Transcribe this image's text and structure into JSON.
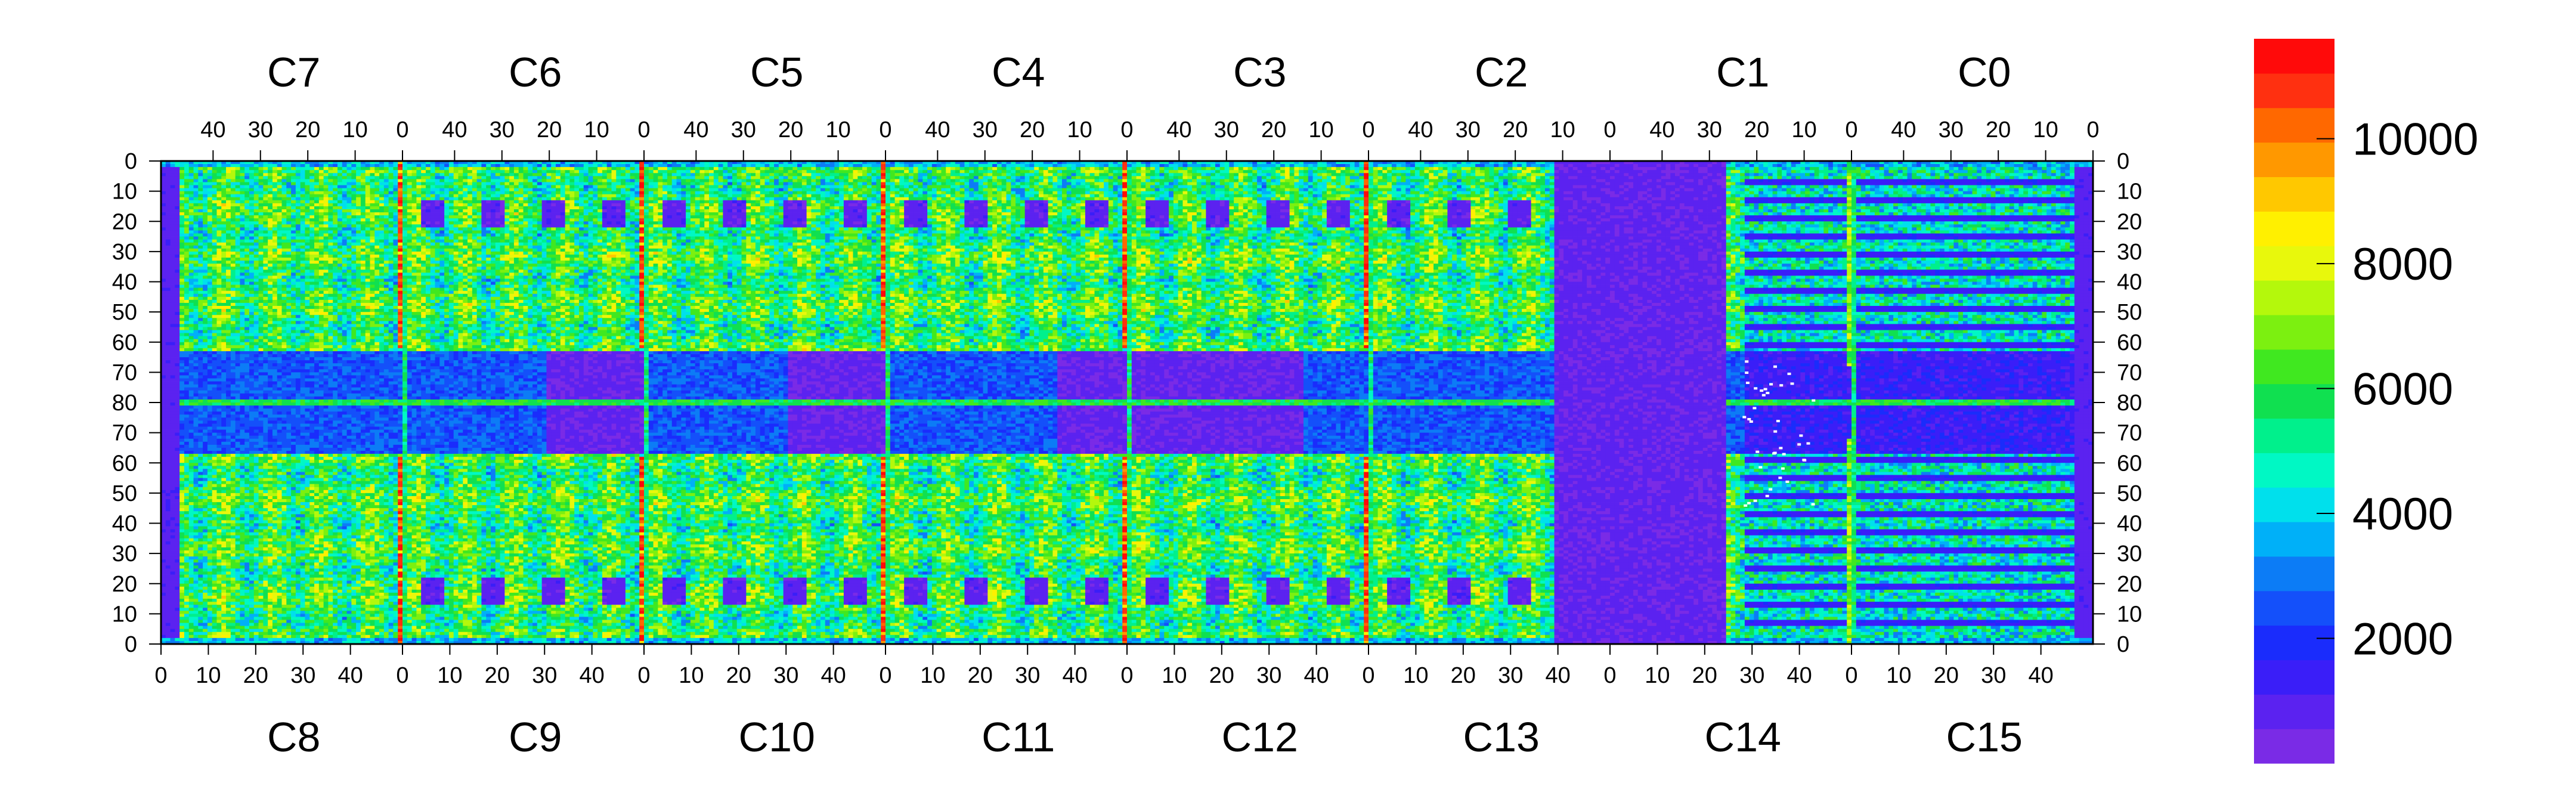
{
  "chart_data": {
    "type": "heatmap",
    "title": "",
    "xlabel": "",
    "ylabel": "",
    "chip_labels_top": [
      "C7",
      "C6",
      "C5",
      "C4",
      "C3",
      "C2",
      "C1",
      "C0"
    ],
    "chip_labels_bottom": [
      "C8",
      "C9",
      "C10",
      "C11",
      "C12",
      "C13",
      "C14",
      "C15"
    ],
    "x_ticks_top": [
      "40",
      "30",
      "20",
      "10",
      "0"
    ],
    "x_ticks_bottom": [
      "0",
      "10",
      "20",
      "30",
      "40"
    ],
    "y_ticks": [
      "0",
      "10",
      "20",
      "30",
      "40",
      "50",
      "60",
      "70",
      "80",
      "70",
      "60",
      "50",
      "40",
      "30",
      "20",
      "10",
      "0"
    ],
    "columns_per_chip": 52,
    "rows_per_half": 80,
    "z_range": [
      0,
      11600
    ],
    "colorbar": {
      "ticks": [
        "2000",
        "4000",
        "6000",
        "8000",
        "10000"
      ],
      "tick_values": [
        2000,
        4000,
        6000,
        8000,
        10000
      ],
      "colors": [
        "#7a2be6",
        "#5b22f0",
        "#3a1ef8",
        "#1a2cfc",
        "#1450fa",
        "#0c7cf6",
        "#00b0f8",
        "#00e0ec",
        "#00f8c4",
        "#00f08c",
        "#10e050",
        "#40e820",
        "#7cf010",
        "#b4f80c",
        "#e8f80c",
        "#fff000",
        "#ffc800",
        "#ff9800",
        "#ff6800",
        "#ff3010",
        "#ff0a0a"
      ]
    },
    "regions": [
      {
        "name": "background",
        "level": 0.53
      },
      {
        "name": "chip-bond-columns",
        "level": 0.95
      },
      {
        "name": "centre-low-band",
        "level": 0.16
      },
      {
        "name": "C13-C14-dead-region",
        "level": 0.02
      }
    ]
  }
}
